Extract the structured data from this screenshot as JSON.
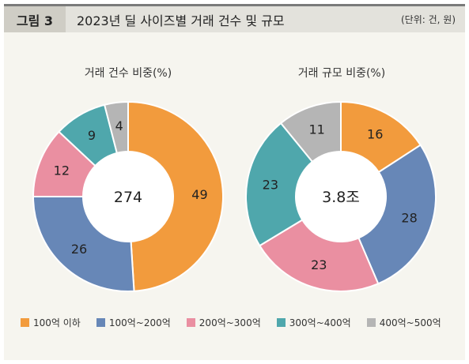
{
  "header": {
    "figure_label": "그림 3",
    "title": "2023년 딜 사이즈별 거래 건수 및 규모",
    "unit": "(단위: 건, 원)"
  },
  "colors": {
    "orange": "#f29b3d",
    "blue": "#6787b7",
    "pink": "#ea8fa1",
    "teal": "#4fa7ac",
    "gray": "#b5b5b5"
  },
  "legend": [
    {
      "label": "100억 이하",
      "color": "#f29b3d"
    },
    {
      "label": "100억~200억",
      "color": "#6787b7"
    },
    {
      "label": "200억~300억",
      "color": "#ea8fa1"
    },
    {
      "label": "300억~400억",
      "color": "#4fa7ac"
    },
    {
      "label": "400억~500억",
      "color": "#b5b5b5"
    }
  ],
  "chart_data": [
    {
      "type": "pie",
      "title": "거래 건수 비중(%)",
      "center_label": "274",
      "categories": [
        "100억 이하",
        "100억~200억",
        "200억~300억",
        "300억~400억",
        "400억~500억"
      ],
      "values": [
        49,
        26,
        12,
        9,
        4
      ]
    },
    {
      "type": "pie",
      "title": "거래 규모 비중(%)",
      "center_label": "3.8조",
      "categories": [
        "100억 이하",
        "100억~200억",
        "200억~300억",
        "300억~400억",
        "400억~500억"
      ],
      "values": [
        16,
        28,
        23,
        23,
        11
      ]
    }
  ]
}
